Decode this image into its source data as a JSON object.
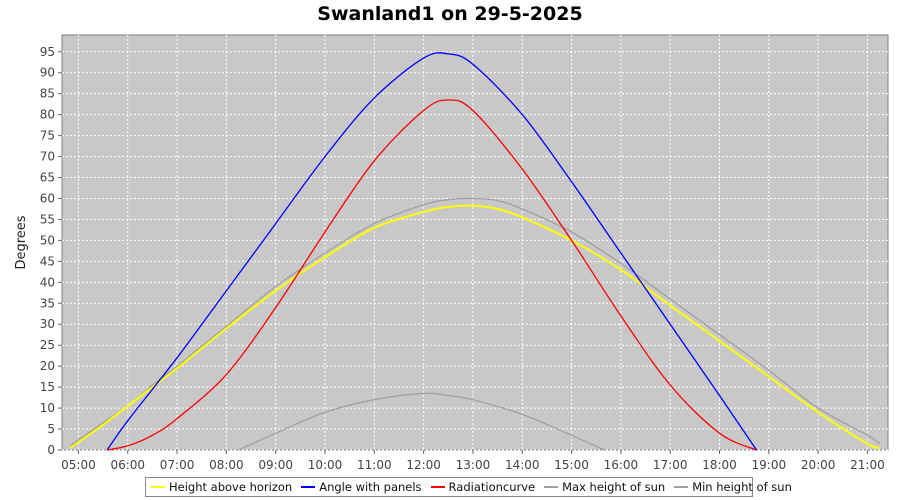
{
  "chart_data": {
    "type": "line",
    "title": "Swanland1 on 29-5-2025",
    "xlabel": "",
    "ylabel": "Degrees",
    "xlim": [
      "04:40",
      "21:25"
    ],
    "ylim": [
      0,
      99
    ],
    "x_ticks": [
      "05:00",
      "06:00",
      "07:00",
      "08:00",
      "09:00",
      "10:00",
      "11:00",
      "12:00",
      "13:00",
      "14:00",
      "15:00",
      "16:00",
      "17:00",
      "18:00",
      "19:00",
      "20:00",
      "21:00"
    ],
    "y_ticks": [
      0,
      5,
      10,
      15,
      20,
      25,
      30,
      35,
      40,
      45,
      50,
      55,
      60,
      65,
      70,
      75,
      80,
      85,
      90,
      95
    ],
    "grid": true,
    "legend": "bottom",
    "background": "#c8c8c8",
    "series": [
      {
        "name": "Height above horizon",
        "color": "#ffff00",
        "x": [
          "04:50",
          "05:30",
          "06:00",
          "06:30",
          "07:00",
          "08:00",
          "09:00",
          "10:00",
          "11:00",
          "12:00",
          "12:30",
          "13:00",
          "13:30",
          "14:00",
          "15:00",
          "16:00",
          "17:00",
          "18:00",
          "19:00",
          "20:00",
          "21:00",
          "21:15"
        ],
        "y": [
          0.5,
          6,
          10.5,
          15,
          19.5,
          29,
          38,
          46,
          53,
          56.8,
          58,
          58.3,
          57.5,
          55.5,
          50,
          43,
          34.5,
          26,
          17.5,
          9,
          1.5,
          0.5
        ]
      },
      {
        "name": "Angle with panels",
        "color": "#0000ff",
        "x": [
          "05:35",
          "06:00",
          "07:00",
          "08:00",
          "09:00",
          "10:00",
          "11:00",
          "12:00",
          "12:30",
          "13:00",
          "14:00",
          "15:00",
          "16:00",
          "17:00",
          "18:00",
          "18:45"
        ],
        "y": [
          0,
          7,
          22,
          38,
          54,
          70,
          84,
          93.5,
          94.5,
          92,
          80,
          64,
          47,
          30,
          13,
          0
        ]
      },
      {
        "name": "Radiationcurve",
        "color": "#ff0000",
        "x": [
          "05:35",
          "06:00",
          "06:30",
          "07:00",
          "08:00",
          "09:00",
          "10:00",
          "11:00",
          "12:00",
          "12:30",
          "13:00",
          "14:00",
          "15:00",
          "16:00",
          "17:00",
          "18:00",
          "18:45"
        ],
        "y": [
          0,
          1,
          3.5,
          7.5,
          18,
          34,
          52,
          69,
          81,
          83.5,
          81,
          67,
          50,
          32,
          15.5,
          4,
          0
        ]
      },
      {
        "name": "Max height of sun",
        "color": "#a0a0a0",
        "x": [
          "04:50",
          "05:30",
          "06:00",
          "06:30",
          "07:00",
          "08:00",
          "09:00",
          "10:00",
          "11:00",
          "12:00",
          "12:30",
          "13:00",
          "13:30",
          "14:00",
          "15:00",
          "16:00",
          "17:00",
          "18:00",
          "19:00",
          "20:00",
          "21:00",
          "21:15"
        ],
        "y": [
          1,
          6.5,
          10.5,
          15.5,
          20,
          29.5,
          39,
          47,
          54,
          58.5,
          59.7,
          60,
          59.5,
          57.5,
          52,
          44.5,
          36,
          27.5,
          19,
          10,
          3.5,
          1.5
        ]
      },
      {
        "name": "Min height of sun",
        "color": "#a0a0a0",
        "x": [
          "08:15",
          "09:00",
          "10:00",
          "11:00",
          "12:00",
          "12:30",
          "13:00",
          "14:00",
          "15:00",
          "15:40"
        ],
        "y": [
          0,
          4,
          9,
          12,
          13.5,
          13,
          12,
          8.5,
          3.5,
          0
        ]
      }
    ]
  }
}
